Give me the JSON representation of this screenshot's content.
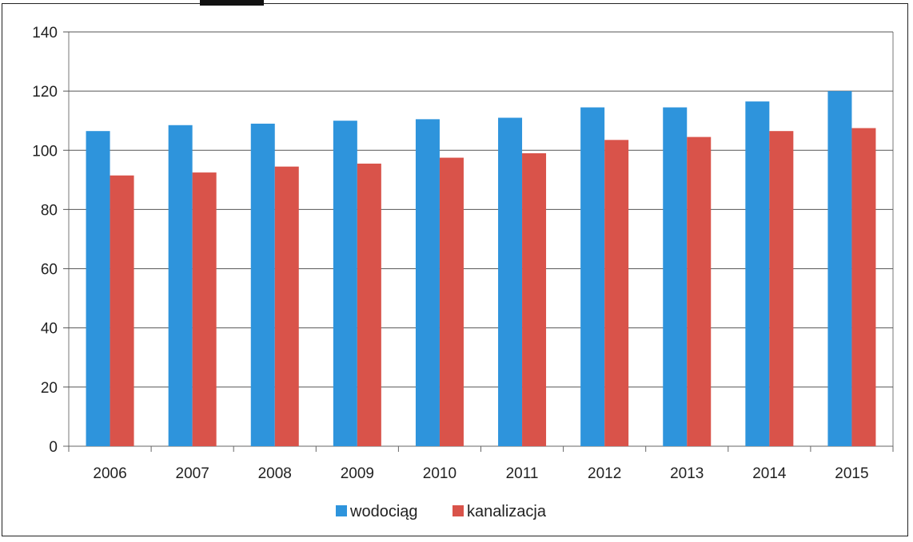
{
  "chart_data": {
    "type": "bar",
    "title": "",
    "xlabel": "",
    "ylabel": "",
    "categories": [
      "2006",
      "2007",
      "2008",
      "2009",
      "2010",
      "2011",
      "2012",
      "2013",
      "2014",
      "2015"
    ],
    "series": [
      {
        "name": "wodociąg",
        "color": "#2e94dc",
        "values": [
          106.5,
          108.5,
          109,
          110,
          110.5,
          111,
          114.5,
          114.5,
          116.5,
          120
        ]
      },
      {
        "name": "kanalizacja",
        "color": "#d9534a",
        "values": [
          91.5,
          92.5,
          94.5,
          95.5,
          97.5,
          99,
          103.5,
          104.5,
          106.5,
          107.5
        ]
      }
    ],
    "ylim": [
      0,
      140
    ],
    "yticks": [
      0,
      20,
      40,
      60,
      80,
      100,
      120,
      140
    ],
    "grid": true,
    "legend": "bottom"
  }
}
